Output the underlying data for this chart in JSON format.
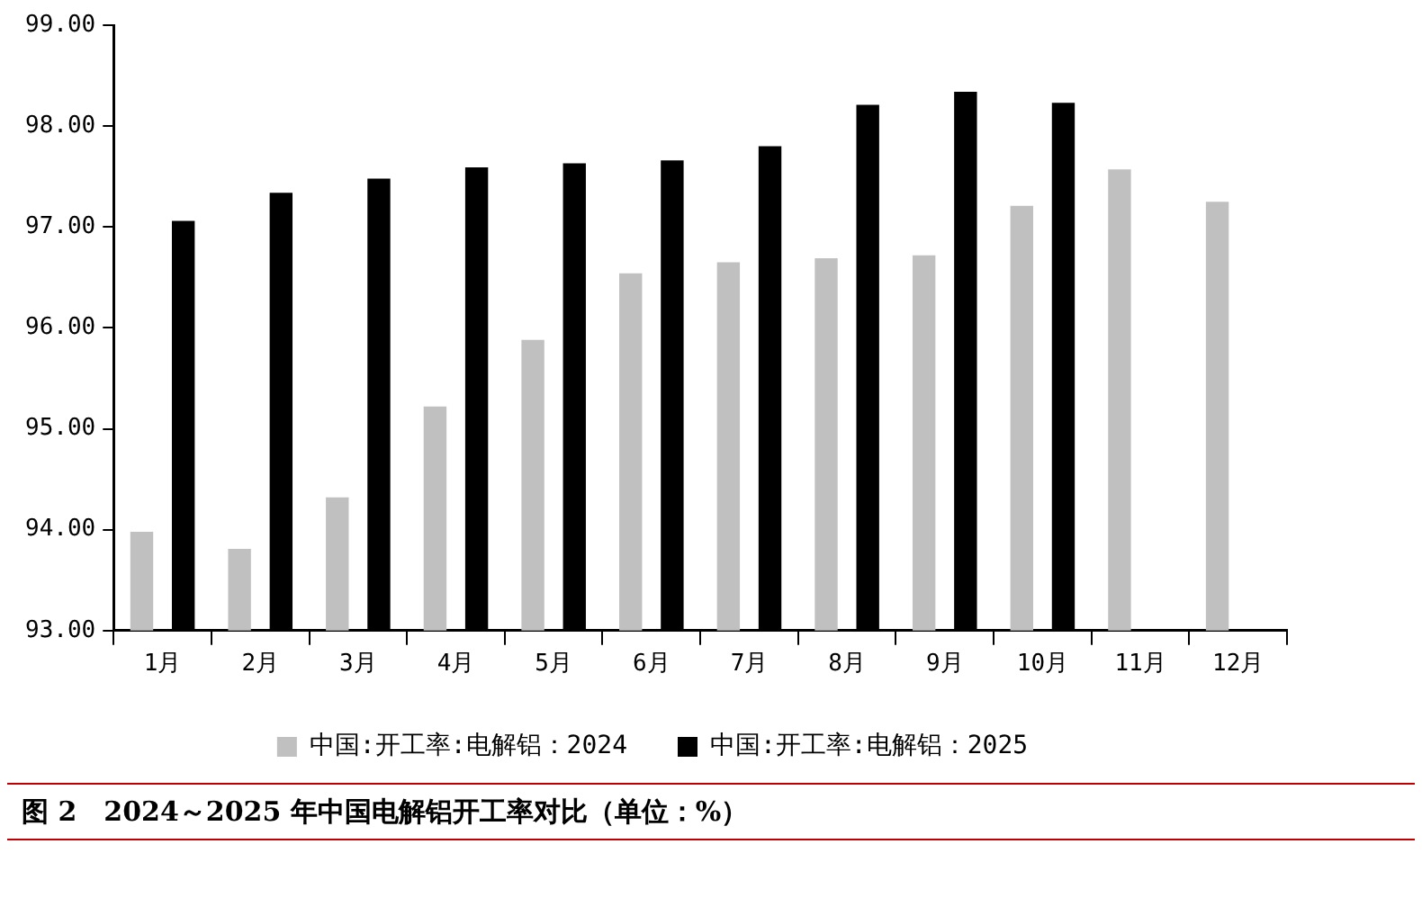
{
  "chart_data": {
    "type": "bar",
    "title": "图 2　2024～2025 年中国电解铝开工率对比（单位：%）",
    "categories": [
      "1月",
      "2月",
      "3月",
      "4月",
      "5月",
      "6月",
      "7月",
      "8月",
      "9月",
      "10月",
      "11月",
      "12月"
    ],
    "series": [
      {
        "name": "中国:开工率:电解铝：2024",
        "color": "#c0c0c0",
        "values": [
          93.98,
          93.81,
          94.32,
          95.22,
          95.88,
          96.54,
          96.65,
          96.69,
          96.72,
          97.21,
          97.57,
          97.25
        ]
      },
      {
        "name": "中国:开工率:电解铝：2025",
        "color": "#000000",
        "values": [
          97.06,
          97.34,
          97.48,
          97.59,
          97.63,
          97.66,
          97.8,
          98.21,
          98.34,
          98.23,
          null,
          null
        ]
      }
    ],
    "ylim": [
      93,
      99
    ],
    "yticks": [
      {
        "value": 93,
        "label": "93.00"
      },
      {
        "value": 94,
        "label": "94.00"
      },
      {
        "value": 95,
        "label": "95.00"
      },
      {
        "value": 96,
        "label": "96.00"
      },
      {
        "value": 97,
        "label": "97.00"
      },
      {
        "value": 98,
        "label": "98.00"
      },
      {
        "value": 99,
        "label": "99.00"
      }
    ],
    "grid": false,
    "legend": "bottom"
  }
}
